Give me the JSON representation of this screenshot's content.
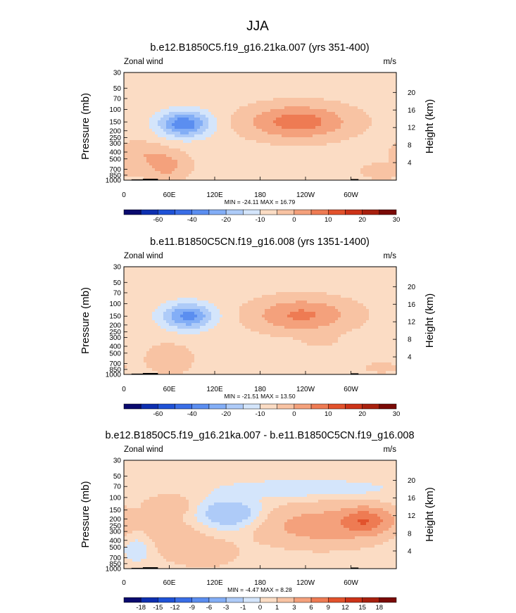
{
  "figure": {
    "title": "JJA"
  },
  "colors": {
    "negative": [
      "#0a0a6e",
      "#0d2fb0",
      "#1f52d6",
      "#3a6ee6",
      "#5b8ef0",
      "#83aef6",
      "#aecbf8",
      "#d4e5fb"
    ],
    "zero": "#fbe8d9",
    "positive": [
      "#fbdcc4",
      "#f8c3a3",
      "#f4a17c",
      "#ee7b53",
      "#e2522c",
      "#cc3318",
      "#a8200e",
      "#7a0a06"
    ]
  },
  "chart_data": [
    {
      "type": "heatmap",
      "title": "b.e12.B1850C5.f19_g16.21ka.007 (yrs 351-400)",
      "left_label": "Zonal wind",
      "right_label": "m/s",
      "ylabel": "Pressure (mb)",
      "ylabel_right": "Height (km)",
      "x_ticks": [
        {
          "lon": 0,
          "label": "0"
        },
        {
          "lon": 60,
          "label": "60E"
        },
        {
          "lon": 120,
          "label": "120E"
        },
        {
          "lon": 180,
          "label": "180"
        },
        {
          "lon": 240,
          "label": "120W"
        },
        {
          "lon": 300,
          "label": "60W"
        }
      ],
      "xlim": [
        0,
        360
      ],
      "y_ticks": [
        30,
        50,
        70,
        100,
        150,
        200,
        250,
        300,
        400,
        500,
        700,
        850,
        1000
      ],
      "ylim": [
        1000,
        30
      ],
      "height_ticks_km": [
        4,
        8,
        12,
        16,
        20
      ],
      "stats": "MIN = -24.11  MAX = 16.79",
      "min": -24.11,
      "max": 16.79,
      "colorbar_labels": [
        "-60",
        "-40",
        "-20",
        "-10",
        "0",
        "10",
        "20",
        "30"
      ],
      "colorbar_levels": [
        -70,
        -60,
        -50,
        -40,
        -30,
        -20,
        -15,
        -10,
        -5,
        0,
        5,
        10,
        15,
        20,
        25,
        30,
        35
      ],
      "features": [
        {
          "lon": 80,
          "p": 160,
          "value": -22,
          "wlon": 24,
          "wlogp": 0.13
        },
        {
          "lon": 230,
          "p": 150,
          "value": 15,
          "wlon": 48,
          "wlogp": 0.17
        },
        {
          "lon": 55,
          "p": 620,
          "value": 9,
          "wlon": 22,
          "wlogp": 0.15
        },
        {
          "lon": 340,
          "p": 750,
          "value": 5,
          "wlon": 20,
          "wlogp": 0.08
        },
        {
          "lon": 20,
          "p": 400,
          "value": 5,
          "wlon": 22,
          "wlogp": 0.12
        }
      ]
    },
    {
      "type": "heatmap",
      "title": "b.e11.B1850C5CN.f19_g16.008 (yrs 1351-1400)",
      "left_label": "Zonal wind",
      "right_label": "m/s",
      "ylabel": "Pressure (mb)",
      "ylabel_right": "Height (km)",
      "x_ticks": [
        {
          "lon": 0,
          "label": "0"
        },
        {
          "lon": 60,
          "label": "60E"
        },
        {
          "lon": 120,
          "label": "120E"
        },
        {
          "lon": 180,
          "label": "180"
        },
        {
          "lon": 240,
          "label": "120W"
        },
        {
          "lon": 300,
          "label": "60W"
        }
      ],
      "xlim": [
        0,
        360
      ],
      "y_ticks": [
        30,
        50,
        70,
        100,
        150,
        200,
        250,
        300,
        400,
        500,
        700,
        850,
        1000
      ],
      "ylim": [
        1000,
        30
      ],
      "height_ticks_km": [
        4,
        8,
        12,
        16,
        20
      ],
      "stats": "MIN = -21.51  MAX = 13.50",
      "min": -21.51,
      "max": 13.5,
      "colorbar_labels": [
        "-60",
        "-40",
        "-20",
        "-10",
        "0",
        "10",
        "20",
        "30"
      ],
      "colorbar_levels": [
        -70,
        -60,
        -50,
        -40,
        -30,
        -20,
        -15,
        -10,
        -5,
        0,
        5,
        10,
        15,
        20,
        25,
        30,
        35
      ],
      "features": [
        {
          "lon": 85,
          "p": 150,
          "value": -20,
          "wlon": 24,
          "wlogp": 0.13
        },
        {
          "lon": 235,
          "p": 145,
          "value": 13,
          "wlon": 46,
          "wlogp": 0.17
        },
        {
          "lon": 60,
          "p": 600,
          "value": 6,
          "wlon": 22,
          "wlogp": 0.15
        },
        {
          "lon": 260,
          "p": 330,
          "value": 4,
          "wlon": 14,
          "wlogp": 0.06
        },
        {
          "lon": 340,
          "p": 800,
          "value": 4,
          "wlon": 18,
          "wlogp": 0.06
        }
      ]
    },
    {
      "type": "heatmap",
      "title": "b.e12.B1850C5.f19_g16.21ka.007 - b.e11.B1850C5CN.f19_g16.008",
      "left_label": "Zonal wind",
      "right_label": "m/s",
      "ylabel": "Pressure (mb)",
      "ylabel_right": "Height (km)",
      "x_ticks": [
        {
          "lon": 0,
          "label": "0"
        },
        {
          "lon": 60,
          "label": "60E"
        },
        {
          "lon": 120,
          "label": "120E"
        },
        {
          "lon": 180,
          "label": "180"
        },
        {
          "lon": 240,
          "label": "120W"
        },
        {
          "lon": 300,
          "label": "60W"
        }
      ],
      "xlim": [
        0,
        360
      ],
      "y_ticks": [
        30,
        50,
        70,
        100,
        150,
        200,
        250,
        300,
        400,
        500,
        700,
        850,
        1000
      ],
      "ylim": [
        1000,
        30
      ],
      "height_ticks_km": [
        4,
        8,
        12,
        16,
        20
      ],
      "stats": "MIN = -4.47  MAX =  8.28",
      "min": -4.47,
      "max": 8.28,
      "colorbar_labels": [
        "-18",
        "-15",
        "-12",
        "-9",
        "-6",
        "-3",
        "-1",
        "0",
        "1",
        "3",
        "6",
        "9",
        "12",
        "15",
        "18"
      ],
      "colorbar_levels": [
        -21,
        -18,
        -15,
        -12,
        -9,
        -6,
        -3,
        -1,
        0,
        1,
        3,
        6,
        9,
        12,
        15,
        18,
        21
      ],
      "features": [
        {
          "lon": 320,
          "p": 210,
          "value": 7,
          "wlon": 22,
          "wlogp": 0.12
        },
        {
          "lon": 260,
          "p": 250,
          "value": 4,
          "wlon": 52,
          "wlogp": 0.18
        },
        {
          "lon": 140,
          "p": 170,
          "value": -3,
          "wlon": 30,
          "wlogp": 0.15
        },
        {
          "lon": 60,
          "p": 350,
          "value": 1.5,
          "wlon": 30,
          "wlogp": 0.2
        },
        {
          "lon": 60,
          "p": 130,
          "value": 2,
          "wlon": 20,
          "wlogp": 0.1
        },
        {
          "lon": 240,
          "p": 75,
          "value": -1.5,
          "wlon": 70,
          "wlogp": 0.08
        },
        {
          "lon": 20,
          "p": 500,
          "value": -1.5,
          "wlon": 16,
          "wlogp": 0.15
        },
        {
          "lon": 110,
          "p": 600,
          "value": 1.2,
          "wlon": 30,
          "wlogp": 0.15
        }
      ]
    }
  ]
}
